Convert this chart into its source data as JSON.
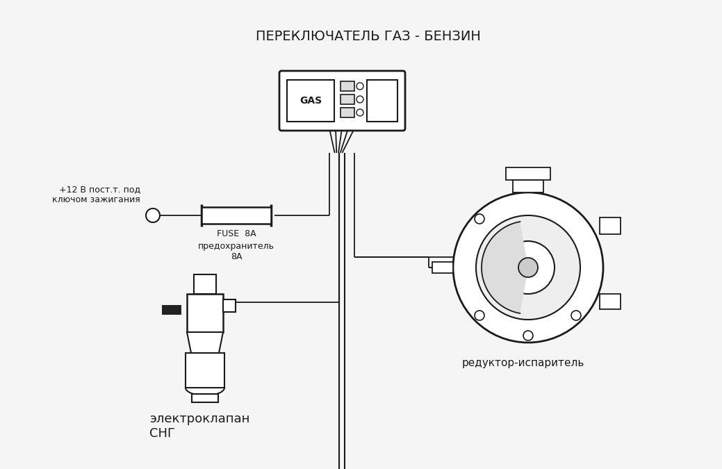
{
  "title": "ПЕРЕКЛЮЧАТЕЛЬ ГАЗ - БЕНЗИН",
  "bg_color": "#f5f5f5",
  "line_color": "#1a1a1a",
  "label_fuse": "FUSE  8A",
  "label_fuse_ru": "предохранитель\n8А",
  "label_valve": "электроклапан\nСНГ",
  "label_reducer": "редуктор-испаритель",
  "label_power": "+12 В пост.т. под\nключом зажигания",
  "label_gas": "GAS"
}
